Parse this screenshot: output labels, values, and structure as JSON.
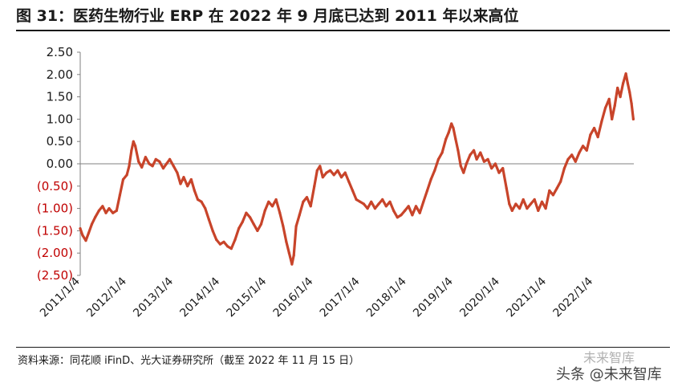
{
  "header": {
    "title": "图 31：医药生物行业 ERP 在 2022 年 9 月底已达到 2011 年以来高位"
  },
  "footer": {
    "source": "资料来源：同花顺 iFinD、光大证券研究所（截至 2022 年 11 月 15 日）"
  },
  "watermarks": {
    "w1": "未来智库",
    "w2": "头条 @未来智库"
  },
  "colors": {
    "line": "#C8442A",
    "negative_label": "#C00000",
    "positive_label": "#1a1a1a",
    "axis": "#808080"
  },
  "chart_data": {
    "type": "line",
    "title": "医药生物行业 ERP 在 2022 年 9 月底已达到 2011 年以来高位",
    "xlabel": "",
    "ylabel": "",
    "ylim": [
      -2.5,
      2.5
    ],
    "y_ticks": [
      2.5,
      2.0,
      1.5,
      1.0,
      0.5,
      0.0,
      -0.5,
      -1.0,
      -1.5,
      -2.0,
      -2.5
    ],
    "y_tick_labels": [
      "2.50",
      "2.00",
      "1.50",
      "1.00",
      "0.50",
      "0.00",
      "(0.50)",
      "(1.00)",
      "(1.50)",
      "(2.00)",
      "(2.50)"
    ],
    "x_tick_labels": [
      "2011/1/4",
      "2012/1/4",
      "2013/1/4",
      "2014/1/4",
      "2015/1/4",
      "2016/1/4",
      "2017/1/4",
      "2018/1/4",
      "2019/1/4",
      "2020/1/4",
      "2021/1/4",
      "2022/1/4"
    ],
    "x_range": [
      2011.0,
      2022.87
    ],
    "series": [
      {
        "name": "医药生物行业 ERP",
        "points": [
          [
            2011.0,
            -1.45
          ],
          [
            2011.05,
            -1.6
          ],
          [
            2011.12,
            -1.72
          ],
          [
            2011.18,
            -1.55
          ],
          [
            2011.25,
            -1.35
          ],
          [
            2011.32,
            -1.2
          ],
          [
            2011.4,
            -1.05
          ],
          [
            2011.48,
            -0.95
          ],
          [
            2011.55,
            -1.1
          ],
          [
            2011.62,
            -1.0
          ],
          [
            2011.7,
            -1.1
          ],
          [
            2011.78,
            -1.05
          ],
          [
            2011.85,
            -0.7
          ],
          [
            2011.92,
            -0.35
          ],
          [
            2012.0,
            -0.25
          ],
          [
            2012.05,
            -0.05
          ],
          [
            2012.1,
            0.3
          ],
          [
            2012.14,
            0.5
          ],
          [
            2012.18,
            0.4
          ],
          [
            2012.25,
            0.05
          ],
          [
            2012.32,
            -0.08
          ],
          [
            2012.4,
            0.15
          ],
          [
            2012.48,
            0.0
          ],
          [
            2012.55,
            -0.05
          ],
          [
            2012.62,
            0.1
          ],
          [
            2012.7,
            0.05
          ],
          [
            2012.78,
            -0.1
          ],
          [
            2012.85,
            0.0
          ],
          [
            2012.92,
            0.1
          ],
          [
            2013.0,
            -0.05
          ],
          [
            2013.08,
            -0.2
          ],
          [
            2013.15,
            -0.45
          ],
          [
            2013.22,
            -0.3
          ],
          [
            2013.3,
            -0.5
          ],
          [
            2013.38,
            -0.35
          ],
          [
            2013.45,
            -0.6
          ],
          [
            2013.52,
            -0.8
          ],
          [
            2013.6,
            -0.85
          ],
          [
            2013.68,
            -1.0
          ],
          [
            2013.76,
            -1.25
          ],
          [
            2013.84,
            -1.5
          ],
          [
            2013.92,
            -1.7
          ],
          [
            2014.0,
            -1.8
          ],
          [
            2014.08,
            -1.75
          ],
          [
            2014.16,
            -1.85
          ],
          [
            2014.24,
            -1.9
          ],
          [
            2014.32,
            -1.7
          ],
          [
            2014.4,
            -1.45
          ],
          [
            2014.48,
            -1.3
          ],
          [
            2014.56,
            -1.1
          ],
          [
            2014.64,
            -1.2
          ],
          [
            2014.72,
            -1.35
          ],
          [
            2014.8,
            -1.5
          ],
          [
            2014.88,
            -1.35
          ],
          [
            2014.96,
            -1.05
          ],
          [
            2015.04,
            -0.85
          ],
          [
            2015.12,
            -0.95
          ],
          [
            2015.2,
            -0.8
          ],
          [
            2015.28,
            -1.1
          ],
          [
            2015.35,
            -1.4
          ],
          [
            2015.42,
            -1.75
          ],
          [
            2015.48,
            -2.0
          ],
          [
            2015.54,
            -2.25
          ],
          [
            2015.58,
            -2.05
          ],
          [
            2015.63,
            -1.4
          ],
          [
            2015.7,
            -1.15
          ],
          [
            2015.78,
            -0.85
          ],
          [
            2015.86,
            -0.75
          ],
          [
            2015.94,
            -0.95
          ],
          [
            2016.02,
            -0.5
          ],
          [
            2016.08,
            -0.15
          ],
          [
            2016.14,
            -0.05
          ],
          [
            2016.2,
            -0.3
          ],
          [
            2016.28,
            -0.2
          ],
          [
            2016.36,
            -0.15
          ],
          [
            2016.44,
            -0.25
          ],
          [
            2016.52,
            -0.15
          ],
          [
            2016.6,
            -0.3
          ],
          [
            2016.68,
            -0.2
          ],
          [
            2016.76,
            -0.4
          ],
          [
            2016.84,
            -0.6
          ],
          [
            2016.92,
            -0.8
          ],
          [
            2017.0,
            -0.85
          ],
          [
            2017.08,
            -0.9
          ],
          [
            2017.16,
            -1.0
          ],
          [
            2017.24,
            -0.85
          ],
          [
            2017.32,
            -1.0
          ],
          [
            2017.4,
            -0.9
          ],
          [
            2017.48,
            -0.8
          ],
          [
            2017.56,
            -0.95
          ],
          [
            2017.64,
            -0.85
          ],
          [
            2017.72,
            -1.05
          ],
          [
            2017.8,
            -1.2
          ],
          [
            2017.88,
            -1.15
          ],
          [
            2017.96,
            -1.05
          ],
          [
            2018.04,
            -0.95
          ],
          [
            2018.12,
            -1.15
          ],
          [
            2018.2,
            -0.95
          ],
          [
            2018.28,
            -1.1
          ],
          [
            2018.36,
            -0.85
          ],
          [
            2018.44,
            -0.6
          ],
          [
            2018.52,
            -0.35
          ],
          [
            2018.6,
            -0.15
          ],
          [
            2018.68,
            0.1
          ],
          [
            2018.76,
            0.25
          ],
          [
            2018.84,
            0.55
          ],
          [
            2018.9,
            0.7
          ],
          [
            2018.96,
            0.9
          ],
          [
            2019.0,
            0.8
          ],
          [
            2019.05,
            0.55
          ],
          [
            2019.1,
            0.3
          ],
          [
            2019.16,
            -0.05
          ],
          [
            2019.22,
            -0.2
          ],
          [
            2019.28,
            0.0
          ],
          [
            2019.36,
            0.2
          ],
          [
            2019.44,
            0.3
          ],
          [
            2019.5,
            0.1
          ],
          [
            2019.58,
            0.25
          ],
          [
            2019.66,
            0.05
          ],
          [
            2019.74,
            0.1
          ],
          [
            2019.82,
            -0.1
          ],
          [
            2019.9,
            0.0
          ],
          [
            2019.98,
            -0.2
          ],
          [
            2020.06,
            -0.1
          ],
          [
            2020.14,
            -0.55
          ],
          [
            2020.2,
            -0.9
          ],
          [
            2020.26,
            -1.05
          ],
          [
            2020.34,
            -0.9
          ],
          [
            2020.42,
            -1.0
          ],
          [
            2020.5,
            -0.8
          ],
          [
            2020.58,
            -1.0
          ],
          [
            2020.66,
            -0.9
          ],
          [
            2020.74,
            -0.8
          ],
          [
            2020.82,
            -1.05
          ],
          [
            2020.9,
            -0.85
          ],
          [
            2020.98,
            -1.0
          ],
          [
            2021.06,
            -0.6
          ],
          [
            2021.14,
            -0.7
          ],
          [
            2021.22,
            -0.55
          ],
          [
            2021.3,
            -0.4
          ],
          [
            2021.38,
            -0.1
          ],
          [
            2021.46,
            0.1
          ],
          [
            2021.54,
            0.2
          ],
          [
            2021.62,
            0.05
          ],
          [
            2021.7,
            0.25
          ],
          [
            2021.78,
            0.4
          ],
          [
            2021.86,
            0.3
          ],
          [
            2021.94,
            0.65
          ],
          [
            2022.02,
            0.8
          ],
          [
            2022.1,
            0.6
          ],
          [
            2022.18,
            0.95
          ],
          [
            2022.26,
            1.25
          ],
          [
            2022.34,
            1.45
          ],
          [
            2022.4,
            1.0
          ],
          [
            2022.46,
            1.3
          ],
          [
            2022.52,
            1.7
          ],
          [
            2022.58,
            1.5
          ],
          [
            2022.64,
            1.8
          ],
          [
            2022.7,
            2.02
          ],
          [
            2022.74,
            1.8
          ],
          [
            2022.78,
            1.6
          ],
          [
            2022.82,
            1.35
          ],
          [
            2022.86,
            1.0
          ]
        ]
      }
    ]
  }
}
